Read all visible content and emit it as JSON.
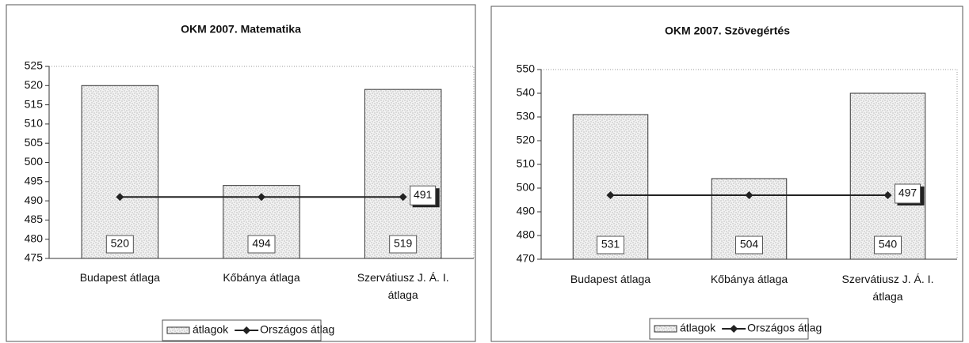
{
  "chart_data": [
    {
      "type": "bar",
      "title": "OKM   2007. Matematika",
      "categories": [
        "Budapest átlaga",
        "Kőbánya átlaga",
        "Szervátiusz J. Á. I. átlaga"
      ],
      "series": [
        {
          "name": "átlagok",
          "type": "bar",
          "color": "#c8c8c8",
          "values": [
            520,
            494,
            519
          ]
        },
        {
          "name": "Országos átlag",
          "type": "line",
          "color": "#222222",
          "values": [
            491,
            491,
            491
          ],
          "show_labels": "last"
        }
      ],
      "ylim": [
        475,
        525
      ],
      "yticks": [
        475,
        480,
        485,
        490,
        495,
        500,
        505,
        510,
        515,
        520,
        525
      ],
      "grid": false,
      "legend": "bottom"
    },
    {
      "type": "bar",
      "title": "OKM 2007. Szövegértés",
      "categories": [
        "Budapest átlaga",
        "Kőbánya átlaga",
        "Szervátiusz J. Á. I. átlaga"
      ],
      "series": [
        {
          "name": "átlagok",
          "type": "bar",
          "color": "#c8c8c8",
          "values": [
            531,
            504,
            540
          ]
        },
        {
          "name": "Országos átlag",
          "type": "line",
          "color": "#222222",
          "values": [
            497,
            497,
            497
          ],
          "show_labels": "last"
        }
      ],
      "ylim": [
        470,
        550
      ],
      "yticks": [
        470,
        480,
        490,
        500,
        510,
        520,
        530,
        540,
        550
      ],
      "grid": false,
      "legend": "bottom"
    }
  ]
}
